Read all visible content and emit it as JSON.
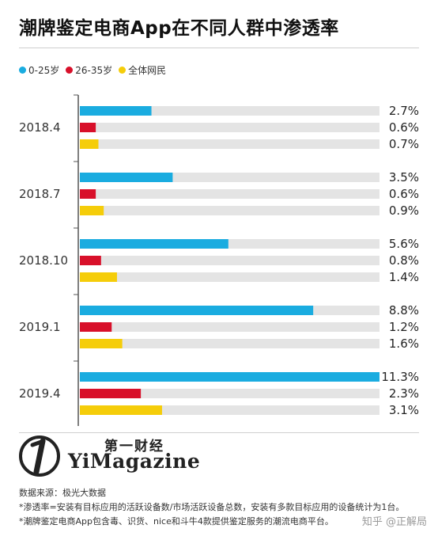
{
  "header": {
    "title": "潮牌鉴定电商App在不同人群中渗透率"
  },
  "colors": {
    "series_0_25": "#1aace0",
    "series_26_35": "#d8102a",
    "series_all": "#f5cd0a",
    "track": "#e4e4e4",
    "axis": "#555555"
  },
  "chart_data": {
    "type": "bar",
    "orientation": "horizontal",
    "title": "潮牌鉴定电商App在不同人群中渗透率",
    "categories": [
      "2018.4",
      "2018.7",
      "2018.10",
      "2019.1",
      "2019.4"
    ],
    "series": [
      {
        "name": "0-25岁",
        "color": "#1aace0",
        "values": [
          2.7,
          3.5,
          5.6,
          8.8,
          11.3
        ],
        "labels": [
          "2.7%",
          "3.5%",
          "5.6%",
          "8.8%",
          "11.3%"
        ]
      },
      {
        "name": "26-35岁",
        "color": "#d8102a",
        "values": [
          0.6,
          0.6,
          0.8,
          1.2,
          2.3
        ],
        "labels": [
          "0.6%",
          "0.6%",
          "0.8%",
          "1.2%",
          "2.3%"
        ]
      },
      {
        "name": "全体网民",
        "color": "#f5cd0a",
        "values": [
          0.7,
          0.9,
          1.4,
          1.6,
          3.1
        ],
        "labels": [
          "0.7%",
          "0.9%",
          "1.4%",
          "1.6%",
          "3.1%"
        ]
      }
    ],
    "unit": "%",
    "xlim": [
      0,
      11.3
    ],
    "legend_position": "top-left",
    "grid": false
  },
  "brand": {
    "logo_cn": "第一财经",
    "logo_en": "YiMagazine"
  },
  "footer": {
    "source": "数据来源：极光大数据",
    "note1": "*渗透率=安装有目标应用的活跃设备数/市场活跃设备总数，安装有多款目标应用的设备统计为1台。",
    "note2": "*潮牌鉴定电商App包含毒、识货、nice和斗牛4款提供鉴定服务的潮流电商平台。"
  },
  "watermark": "知乎 @正解局"
}
